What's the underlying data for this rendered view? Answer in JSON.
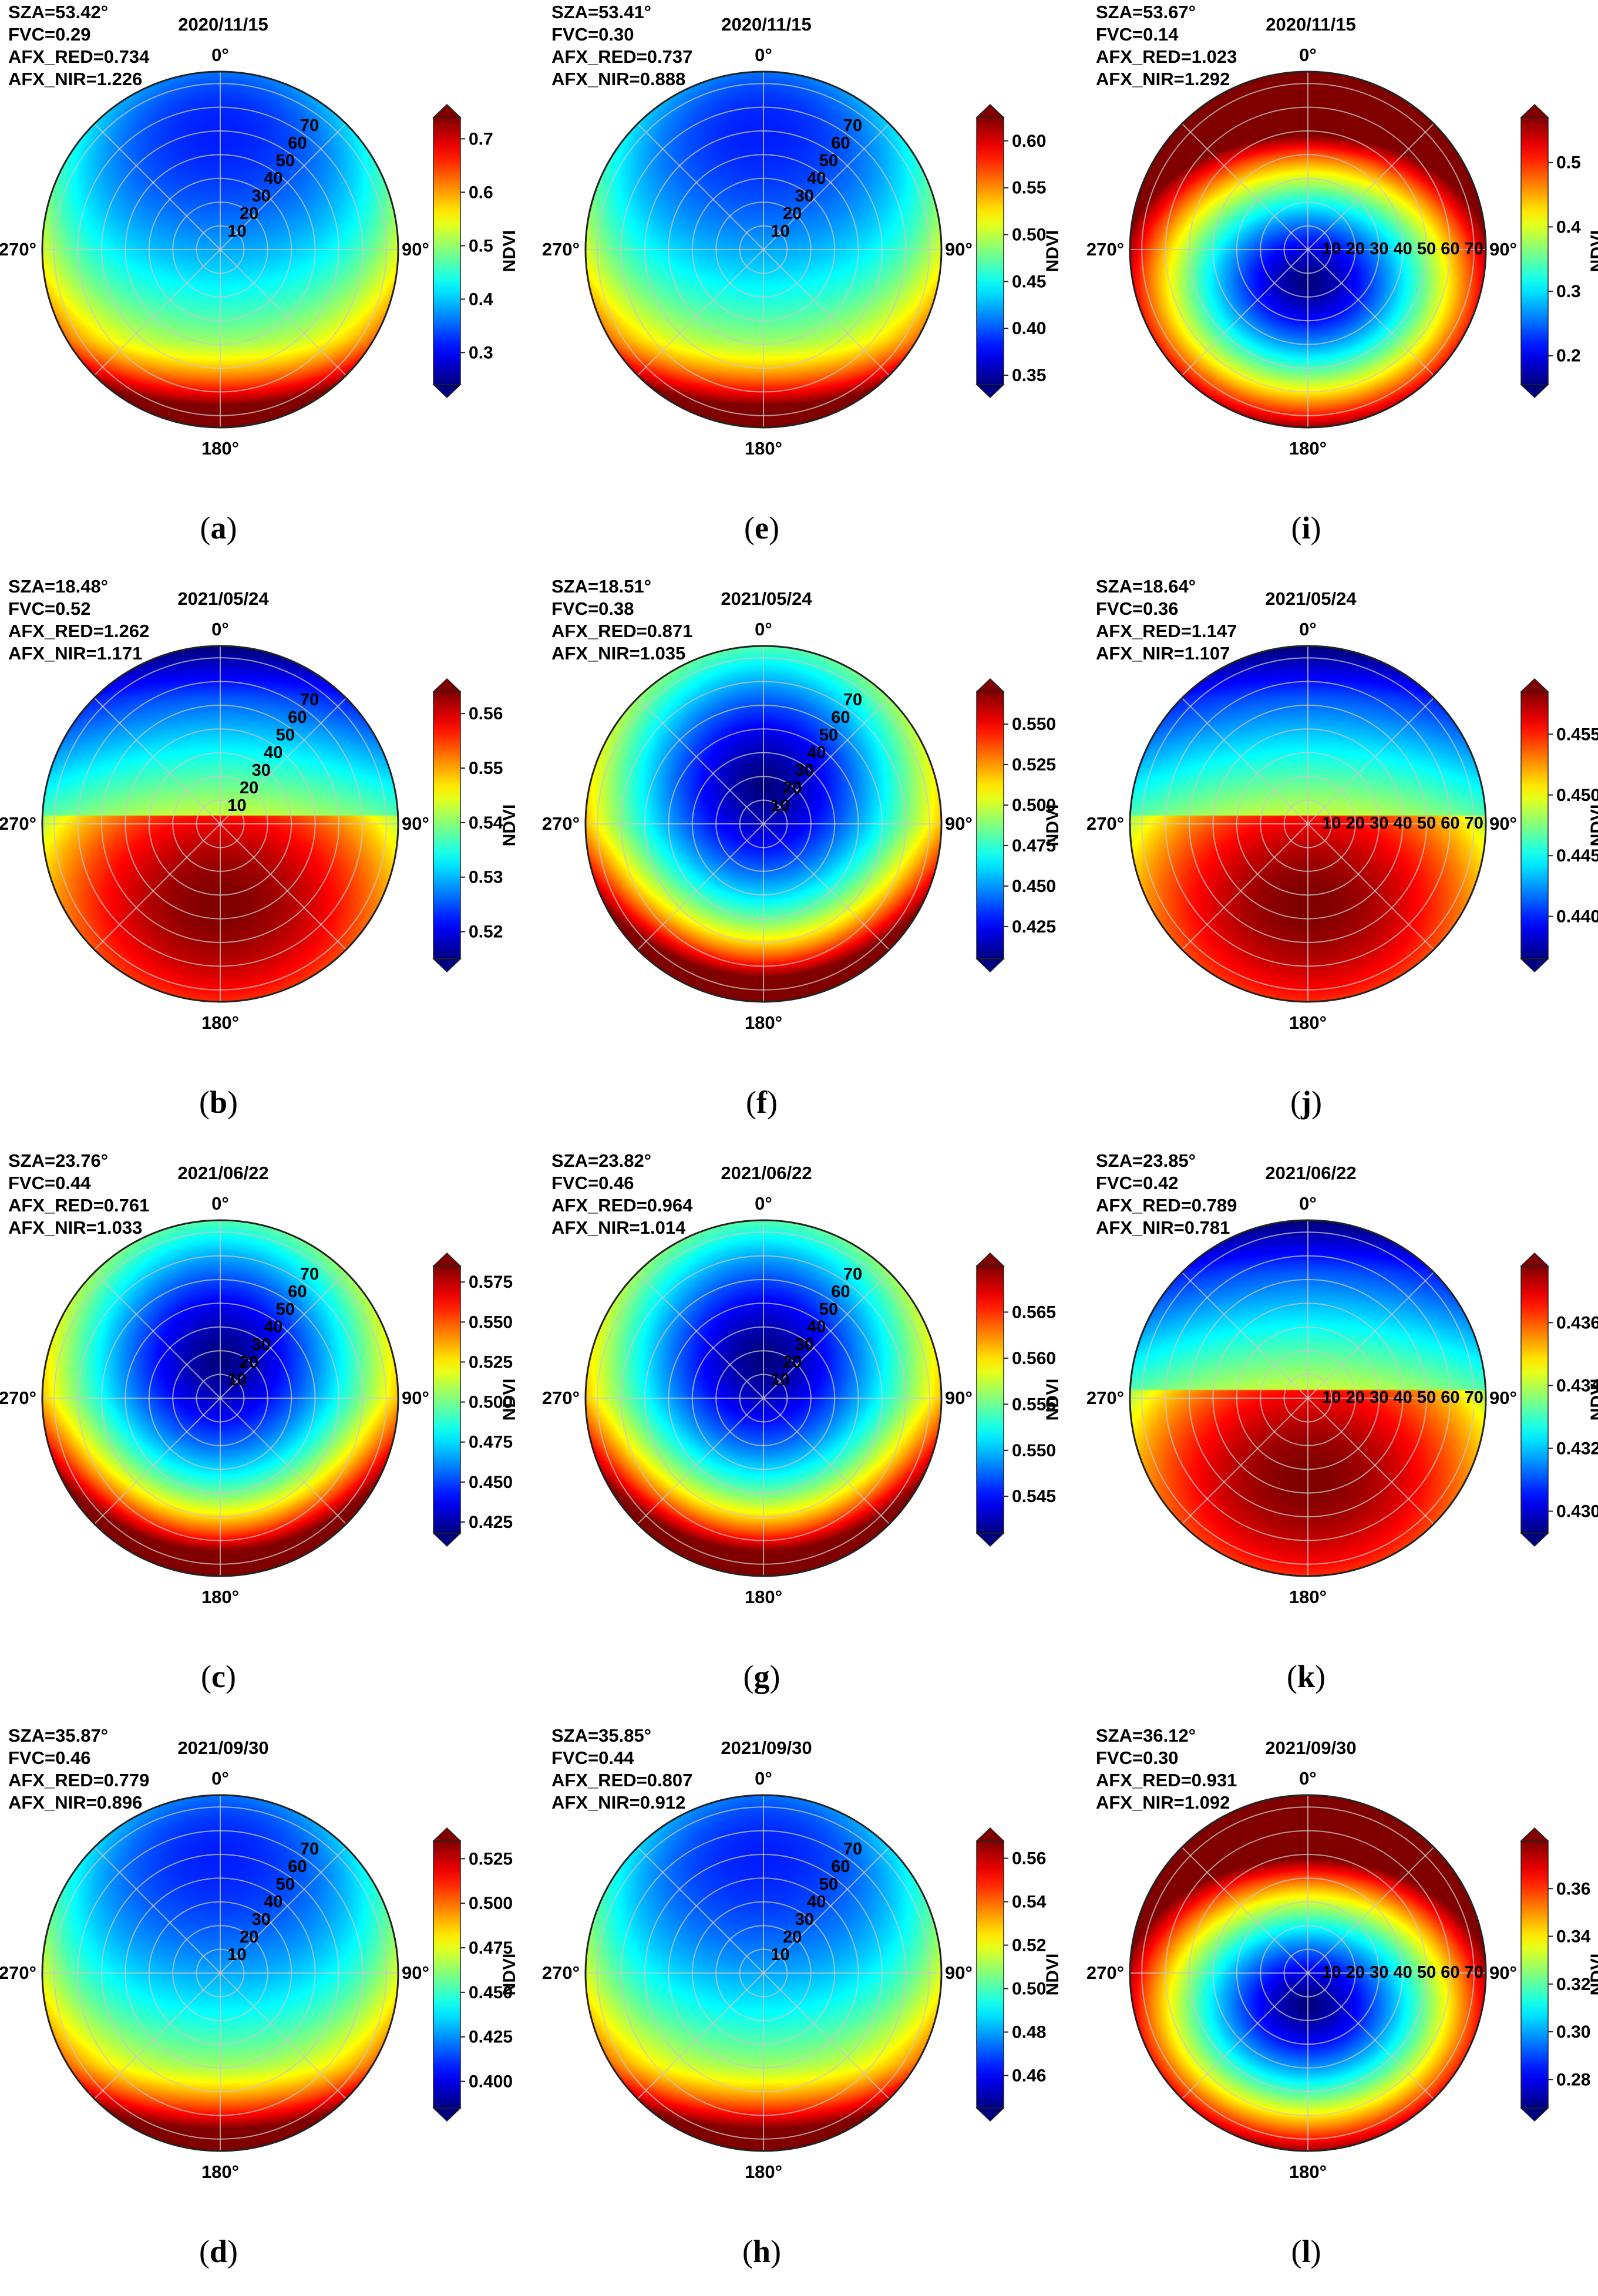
{
  "figure": {
    "colormap": "jet",
    "colorbar_label": "NDVI"
  },
  "chart_data": [
    {
      "id": "a",
      "type": "heatmap",
      "subtype": "polar",
      "caption": "a",
      "date": "2020/11/15",
      "params": [
        "SZA=53.42°",
        "FVC=0.29",
        "AFX_RED=0.734",
        "AFX_NIR=1.226"
      ],
      "azimuth_labels": [
        "0°",
        "90°",
        "180°",
        "270°"
      ],
      "radial_ticks": [
        "10",
        "20",
        "30",
        "40",
        "50",
        "60",
        "70"
      ],
      "radial_max": 75,
      "pattern": "backward",
      "colorbar": {
        "label": "NDVI",
        "vmin": 0.24,
        "vmax": 0.74,
        "ticks": [
          "0.3",
          "0.4",
          "0.5",
          "0.6",
          "0.7"
        ]
      }
    },
    {
      "id": "b",
      "type": "heatmap",
      "subtype": "polar",
      "caption": "b",
      "date": "2021/05/24",
      "params": [
        "SZA=18.48°",
        "FVC=0.52",
        "AFX_RED=1.262",
        "AFX_NIR=1.171"
      ],
      "azimuth_labels": [
        "0°",
        "90°",
        "180°",
        "270°"
      ],
      "radial_ticks": [
        "10",
        "20",
        "30",
        "40",
        "50",
        "60",
        "70"
      ],
      "radial_max": 75,
      "pattern": "hotspot",
      "colorbar": {
        "label": "NDVI",
        "vmin": 0.515,
        "vmax": 0.564,
        "ticks": [
          "0.52",
          "0.53",
          "0.54",
          "0.55",
          "0.56"
        ]
      }
    },
    {
      "id": "c",
      "type": "heatmap",
      "subtype": "polar",
      "caption": "c",
      "date": "2021/06/22",
      "params": [
        "SZA=23.76°",
        "FVC=0.44",
        "AFX_RED=0.761",
        "AFX_NIR=1.033"
      ],
      "azimuth_labels": [
        "0°",
        "90°",
        "180°",
        "270°"
      ],
      "radial_ticks": [
        "10",
        "20",
        "30",
        "40",
        "50",
        "60",
        "70"
      ],
      "radial_max": 75,
      "pattern": "bowl",
      "colorbar": {
        "label": "NDVI",
        "vmin": 0.418,
        "vmax": 0.585,
        "ticks": [
          "0.425",
          "0.450",
          "0.475",
          "0.500",
          "0.525",
          "0.550",
          "0.575"
        ]
      }
    },
    {
      "id": "d",
      "type": "heatmap",
      "subtype": "polar",
      "caption": "d",
      "date": "2021/09/30",
      "params": [
        "SZA=35.87°",
        "FVC=0.46",
        "AFX_RED=0.779",
        "AFX_NIR=0.896"
      ],
      "azimuth_labels": [
        "0°",
        "90°",
        "180°",
        "270°"
      ],
      "radial_ticks": [
        "10",
        "20",
        "30",
        "40",
        "50",
        "60",
        "70"
      ],
      "radial_max": 75,
      "pattern": "backward",
      "colorbar": {
        "label": "NDVI",
        "vmin": 0.385,
        "vmax": 0.535,
        "ticks": [
          "0.400",
          "0.425",
          "0.450",
          "0.475",
          "0.500",
          "0.525"
        ]
      }
    },
    {
      "id": "e",
      "type": "heatmap",
      "subtype": "polar",
      "caption": "e",
      "date": "2020/11/15",
      "params": [
        "SZA=53.41°",
        "FVC=0.30",
        "AFX_RED=0.737",
        "AFX_NIR=0.888"
      ],
      "azimuth_labels": [
        "0°",
        "90°",
        "180°",
        "270°"
      ],
      "radial_ticks": [
        "10",
        "20",
        "30",
        "40",
        "50",
        "60",
        "70"
      ],
      "radial_max": 75,
      "pattern": "backward",
      "colorbar": {
        "label": "NDVI",
        "vmin": 0.34,
        "vmax": 0.625,
        "ticks": [
          "0.35",
          "0.40",
          "0.45",
          "0.50",
          "0.55",
          "0.60"
        ]
      }
    },
    {
      "id": "f",
      "type": "heatmap",
      "subtype": "polar",
      "caption": "f",
      "date": "2021/05/24",
      "params": [
        "SZA=18.51°",
        "FVC=0.38",
        "AFX_RED=0.871",
        "AFX_NIR=1.035"
      ],
      "azimuth_labels": [
        "0°",
        "90°",
        "180°",
        "270°"
      ],
      "radial_ticks": [
        "10",
        "20",
        "30",
        "40",
        "50",
        "60",
        "70"
      ],
      "radial_max": 75,
      "pattern": "bowl",
      "colorbar": {
        "label": "NDVI",
        "vmin": 0.405,
        "vmax": 0.57,
        "ticks": [
          "0.425",
          "0.450",
          "0.475",
          "0.500",
          "0.525",
          "0.550"
        ]
      }
    },
    {
      "id": "g",
      "type": "heatmap",
      "subtype": "polar",
      "caption": "g",
      "date": "2021/06/22",
      "params": [
        "SZA=23.82°",
        "FVC=0.46",
        "AFX_RED=0.964",
        "AFX_NIR=1.014"
      ],
      "azimuth_labels": [
        "0°",
        "90°",
        "180°",
        "270°"
      ],
      "radial_ticks": [
        "10",
        "20",
        "30",
        "40",
        "50",
        "60",
        "70"
      ],
      "radial_max": 75,
      "pattern": "bowl",
      "colorbar": {
        "label": "NDVI",
        "vmin": 0.541,
        "vmax": 0.57,
        "ticks": [
          "0.545",
          "0.550",
          "0.555",
          "0.560",
          "0.565"
        ]
      }
    },
    {
      "id": "h",
      "type": "heatmap",
      "subtype": "polar",
      "caption": "h",
      "date": "2021/09/30",
      "params": [
        "SZA=35.85°",
        "FVC=0.44",
        "AFX_RED=0.807",
        "AFX_NIR=0.912"
      ],
      "azimuth_labels": [
        "0°",
        "90°",
        "180°",
        "270°"
      ],
      "radial_ticks": [
        "10",
        "20",
        "30",
        "40",
        "50",
        "60",
        "70"
      ],
      "radial_max": 75,
      "pattern": "backward",
      "colorbar": {
        "label": "NDVI",
        "vmin": 0.445,
        "vmax": 0.568,
        "ticks": [
          "0.46",
          "0.48",
          "0.50",
          "0.52",
          "0.54",
          "0.56"
        ]
      }
    },
    {
      "id": "i",
      "type": "heatmap",
      "subtype": "polar",
      "caption": "i",
      "date": "2020/11/15",
      "params": [
        "SZA=53.67°",
        "FVC=0.14",
        "AFX_RED=1.023",
        "AFX_NIR=1.292"
      ],
      "azimuth_labels": [
        "0°",
        "90°",
        "180°",
        "270°"
      ],
      "radial_ticks": [
        "10",
        "20",
        "30",
        "40",
        "50",
        "60",
        "70"
      ],
      "radial_max": 75,
      "pattern": "ring",
      "colorbar": {
        "label": "NDVI",
        "vmin": 0.155,
        "vmax": 0.57,
        "ticks": [
          "0.2",
          "0.3",
          "0.4",
          "0.5"
        ]
      }
    },
    {
      "id": "j",
      "type": "heatmap",
      "subtype": "polar",
      "caption": "j",
      "date": "2021/05/24",
      "params": [
        "SZA=18.64°",
        "FVC=0.36",
        "AFX_RED=1.147",
        "AFX_NIR=1.107"
      ],
      "azimuth_labels": [
        "0°",
        "90°",
        "180°",
        "270°"
      ],
      "radial_ticks": [
        "10",
        "20",
        "30",
        "40",
        "50",
        "60",
        "70"
      ],
      "radial_max": 75,
      "pattern": "hotspot",
      "colorbar": {
        "label": "NDVI",
        "vmin": 0.4365,
        "vmax": 0.4585,
        "ticks": [
          "0.440",
          "0.445",
          "0.450",
          "0.455"
        ]
      }
    },
    {
      "id": "k",
      "type": "heatmap",
      "subtype": "polar",
      "caption": "k",
      "date": "2021/06/22",
      "params": [
        "SZA=23.85°",
        "FVC=0.42",
        "AFX_RED=0.789",
        "AFX_NIR=0.781"
      ],
      "azimuth_labels": [
        "0°",
        "90°",
        "180°",
        "270°"
      ],
      "radial_ticks": [
        "10",
        "20",
        "30",
        "40",
        "50",
        "60",
        "70"
      ],
      "radial_max": 75,
      "pattern": "hotspot",
      "colorbar": {
        "label": "NDVI",
        "vmin": 0.4293,
        "vmax": 0.4378,
        "ticks": [
          "0.430",
          "0.432",
          "0.434",
          "0.436"
        ]
      }
    },
    {
      "id": "l",
      "type": "heatmap",
      "subtype": "polar",
      "caption": "l",
      "date": "2021/09/30",
      "params": [
        "SZA=36.12°",
        "FVC=0.30",
        "AFX_RED=0.931",
        "AFX_NIR=1.092"
      ],
      "azimuth_labels": [
        "0°",
        "90°",
        "180°",
        "270°"
      ],
      "radial_ticks": [
        "10",
        "20",
        "30",
        "40",
        "50",
        "60",
        "70"
      ],
      "radial_max": 75,
      "pattern": "ring",
      "colorbar": {
        "label": "NDVI",
        "vmin": 0.268,
        "vmax": 0.38,
        "ticks": [
          "0.28",
          "0.30",
          "0.32",
          "0.34",
          "0.36"
        ]
      }
    }
  ]
}
